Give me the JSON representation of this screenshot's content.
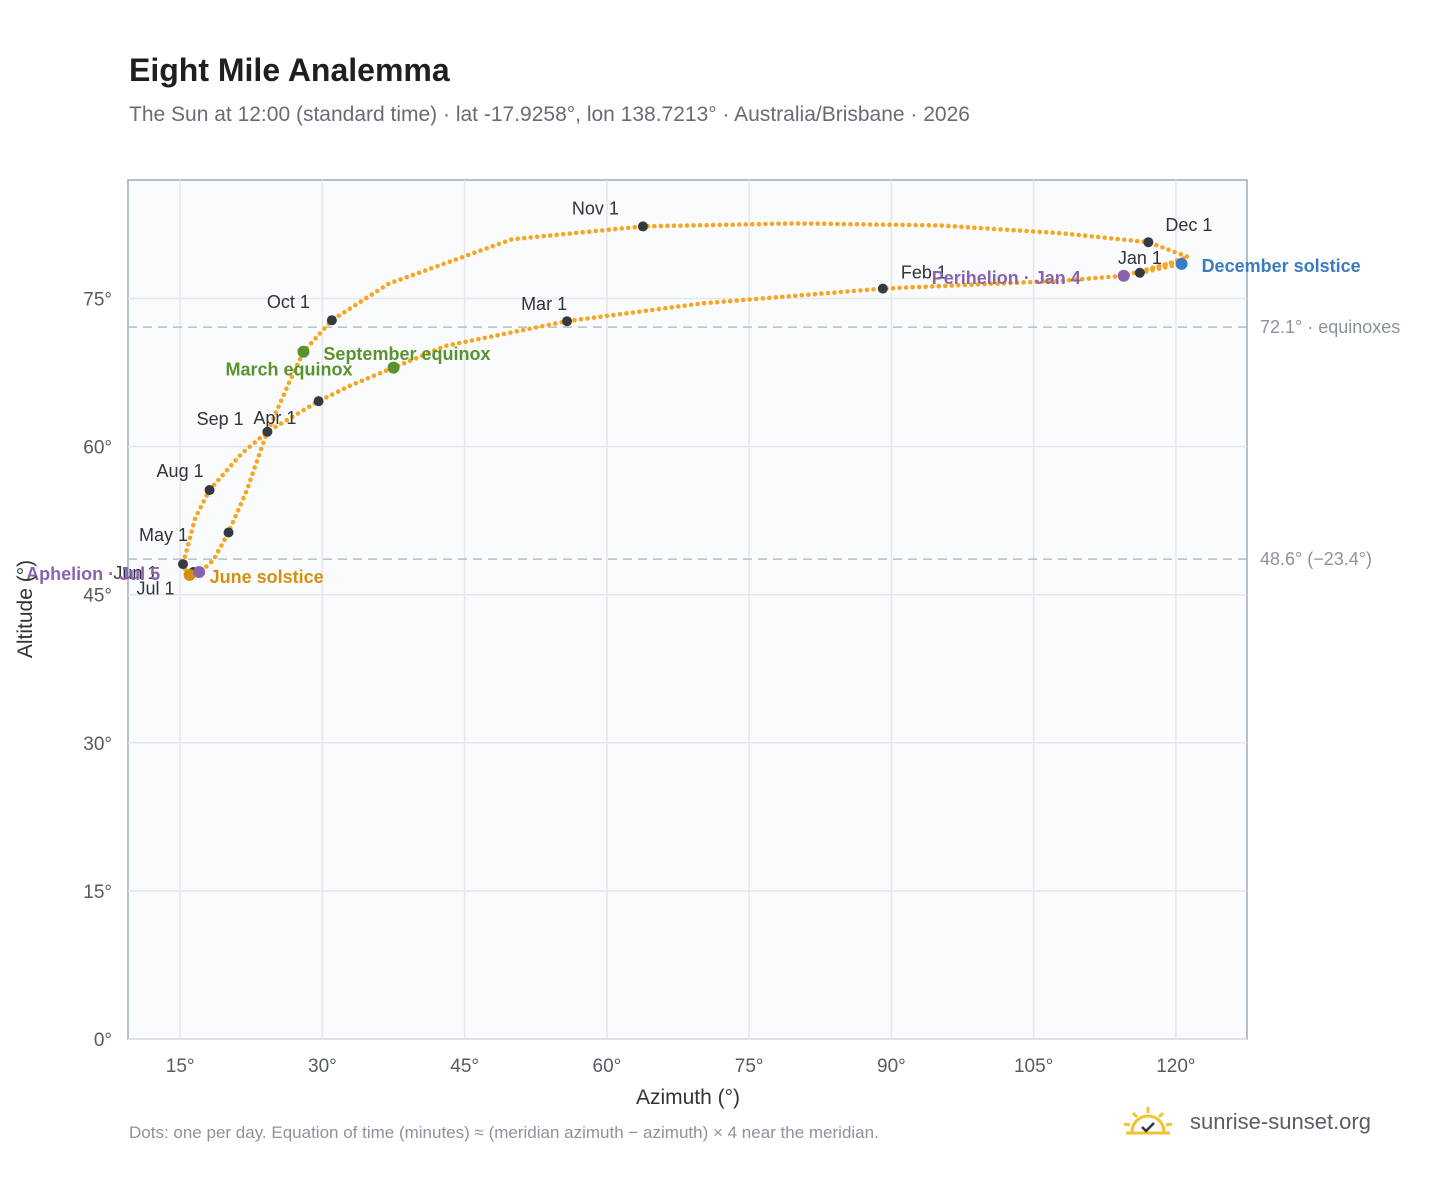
{
  "title": "Eight Mile Analemma",
  "subtitle": "The Sun at 12:00 (standard time) · lat -17.9258°, lon 138.7213° · Australia/Brisbane · 2026",
  "footnote": "Dots: one per day. Equation of time (minutes) ≈ (meridian azimuth − azimuth) × 4 near the meridian.",
  "brand": {
    "text": "sunrise-sunset.org",
    "icon": "sun-logo-icon"
  },
  "colors": {
    "curve": "#f5a623",
    "month": "#343a40",
    "equinox": "#5a9230",
    "solstice_june": "#d4900f",
    "solstice_dec": "#3b7bbf",
    "apsis": "#8a63ad",
    "refline": "#b4bec9"
  },
  "chart_data": {
    "type": "scatter",
    "xlabel": "Azimuth (°)",
    "ylabel": "Altitude (°)",
    "xlim": [
      9.5,
      127.5
    ],
    "ylim": [
      0,
      87
    ],
    "xticks": [
      15,
      30,
      45,
      60,
      75,
      90,
      105,
      120
    ],
    "yticks": [
      0,
      15,
      30,
      45,
      60,
      75
    ],
    "xtick_labels": [
      "15°",
      "30°",
      "45°",
      "60°",
      "75°",
      "90°",
      "105°",
      "120°"
    ],
    "ytick_labels": [
      "0°",
      "15°",
      "30°",
      "45°",
      "60°",
      "75°"
    ],
    "grid": true,
    "reference_lines": [
      {
        "y": 72.1,
        "label": "72.1° · equinoxes"
      },
      {
        "y": 48.6,
        "label": "48.6° (−23.4°)"
      }
    ],
    "curve_key_points": [
      [
        116.2,
        77.6
      ],
      [
        120.6,
        78.5
      ],
      [
        119.5,
        78.6
      ],
      [
        114.5,
        77.3
      ],
      [
        108,
        76.8
      ],
      [
        89.1,
        76.0
      ],
      [
        70,
        74.5
      ],
      [
        55.8,
        72.7
      ],
      [
        43,
        70.2
      ],
      [
        37.5,
        68.0
      ],
      [
        33,
        66.2
      ],
      [
        29.6,
        64.6
      ],
      [
        24.2,
        61.5
      ],
      [
        21.5,
        59.3
      ],
      [
        18.1,
        55.6
      ],
      [
        16.6,
        52.8
      ],
      [
        15.3,
        48.1
      ],
      [
        15.5,
        47.6
      ],
      [
        16.2,
        47.0
      ],
      [
        17,
        47.2
      ],
      [
        18.5,
        48.5
      ],
      [
        20.1,
        51.3
      ],
      [
        22,
        55.5
      ],
      [
        24,
        61.0
      ],
      [
        26.5,
        66.5
      ],
      [
        28.0,
        69.6
      ],
      [
        31.0,
        72.8
      ],
      [
        37,
        76.5
      ],
      [
        50,
        81.0
      ],
      [
        63.8,
        82.3
      ],
      [
        80,
        82.6
      ],
      [
        95,
        82.4
      ],
      [
        108,
        81.6
      ],
      [
        117.1,
        80.7
      ],
      [
        121.3,
        79.2
      ],
      [
        116.2,
        77.6
      ]
    ],
    "month_points": [
      {
        "label": "Jan 1",
        "x": 116.2,
        "y": 77.6
      },
      {
        "label": "Feb 1",
        "x": 89.1,
        "y": 76.0
      },
      {
        "label": "Mar 1",
        "x": 55.8,
        "y": 72.7
      },
      {
        "label": "Apr 1",
        "x": 24.2,
        "y": 61.5
      },
      {
        "label": "May 1",
        "x": 15.3,
        "y": 48.1
      },
      {
        "label": "Jun 1",
        "x": 16.4,
        "y": 47.3
      },
      {
        "label": "Jul 1",
        "x": 20.1,
        "y": 51.3
      },
      {
        "label": "Aug 1",
        "x": 18.1,
        "y": 55.6
      },
      {
        "label": "Sep 1",
        "x": 29.6,
        "y": 64.6
      },
      {
        "label": "Oct 1",
        "x": 31.0,
        "y": 72.8
      },
      {
        "label": "Nov 1",
        "x": 63.8,
        "y": 82.3
      },
      {
        "label": "Dec 1",
        "x": 117.1,
        "y": 80.7
      }
    ],
    "events": [
      {
        "label": "March equinox",
        "x": 37.5,
        "y": 68.0,
        "color": "#5a9230"
      },
      {
        "label": "September equinox",
        "x": 28.0,
        "y": 69.6,
        "color": "#5a9230"
      },
      {
        "label": "June solstice",
        "x": 16.0,
        "y": 47.0,
        "color": "#d4900f"
      },
      {
        "label": "December solstice",
        "x": 120.6,
        "y": 78.5,
        "color": "#3b7bbf"
      },
      {
        "label": "Aphelion · Jul 5",
        "x": 17.0,
        "y": 47.3,
        "color": "#8a63ad"
      },
      {
        "label": "Perihelion · Jan 4",
        "x": 114.5,
        "y": 77.3,
        "color": "#8a63ad"
      }
    ]
  }
}
